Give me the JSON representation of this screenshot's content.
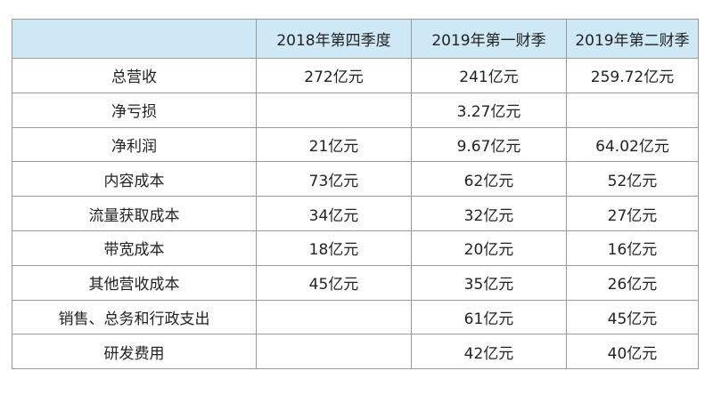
{
  "table": {
    "columns": [
      "",
      "2018年第四季度",
      "2019年第一财季",
      "2019年第二财季"
    ],
    "rows": [
      {
        "label": "总营收",
        "cells": [
          "272亿元",
          "241亿元",
          "259.72亿元"
        ]
      },
      {
        "label": "净亏损",
        "cells": [
          "",
          "3.27亿元",
          ""
        ]
      },
      {
        "label": "净利润",
        "cells": [
          "21亿元",
          "9.67亿元",
          "64.02亿元"
        ]
      },
      {
        "label": "内容成本",
        "cells": [
          "73亿元",
          "62亿元",
          "52亿元"
        ]
      },
      {
        "label": "流量获取成本",
        "cells": [
          "34亿元",
          "32亿元",
          "27亿元"
        ]
      },
      {
        "label": "带宽成本",
        "cells": [
          "18亿元",
          "20亿元",
          "16亿元"
        ]
      },
      {
        "label": "其他营收成本",
        "cells": [
          "45亿元",
          "35亿元",
          "26亿元"
        ]
      },
      {
        "label": "销售、总务和行政支出",
        "cells": [
          "",
          "61亿元",
          "45亿元"
        ]
      },
      {
        "label": "研发费用",
        "cells": [
          "",
          "42亿元",
          "40亿元"
        ]
      }
    ]
  },
  "colors": {
    "header_background": "#cfe8f5",
    "border": "#9a9a9a"
  }
}
